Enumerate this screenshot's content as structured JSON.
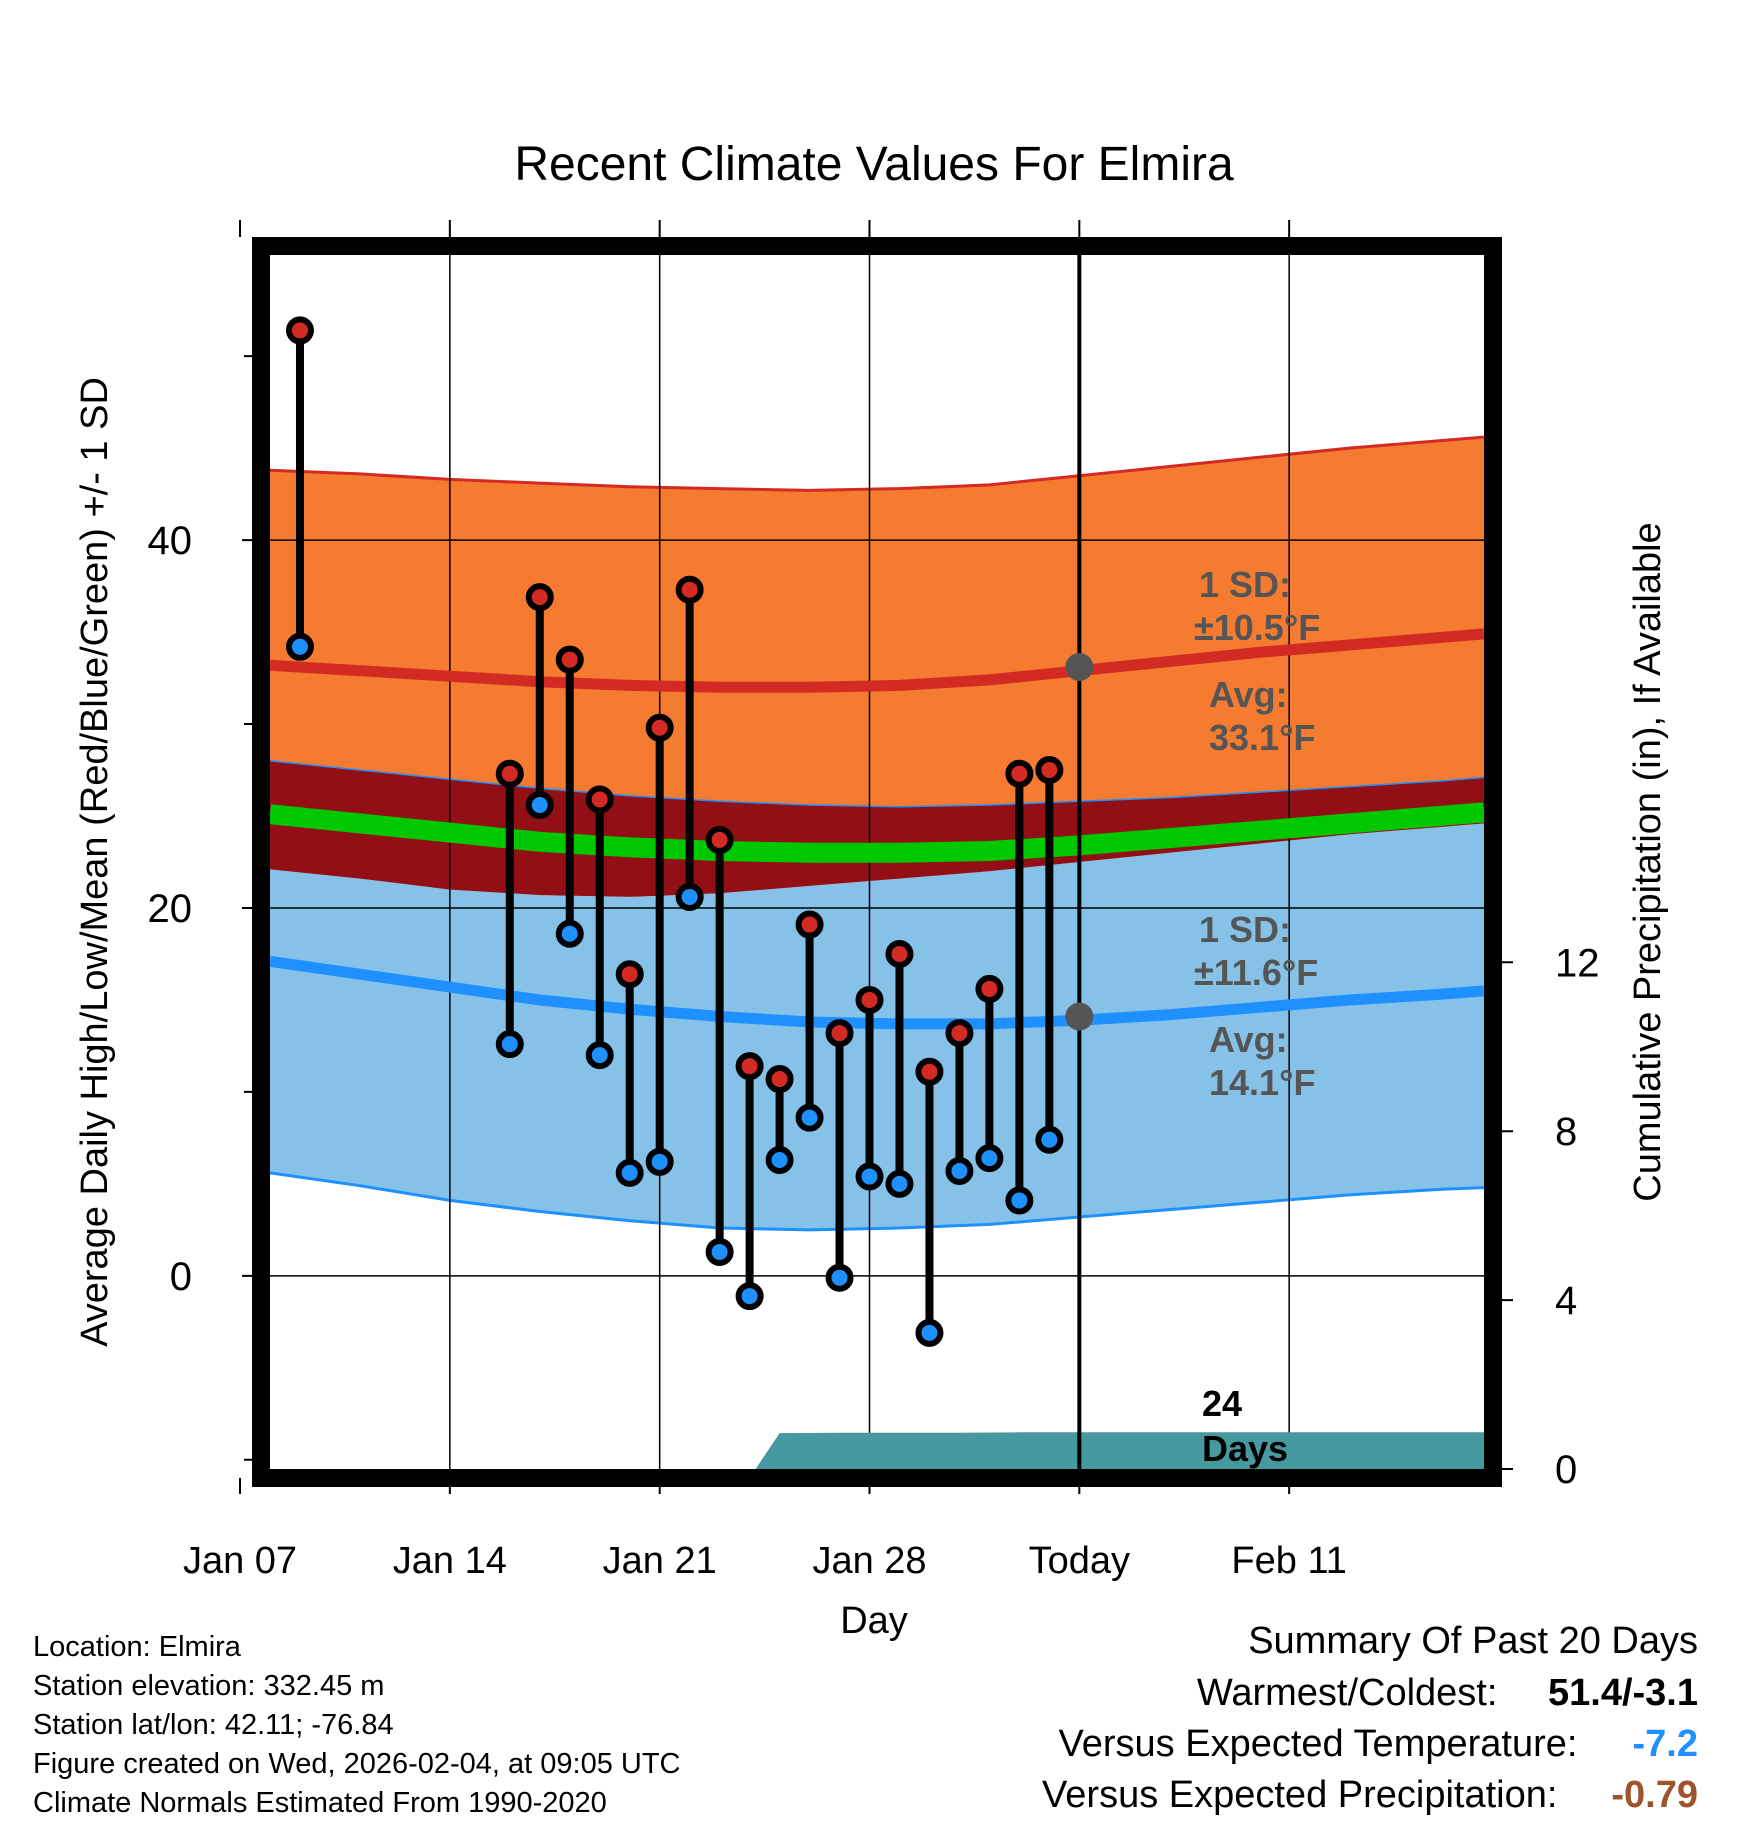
{
  "chart_data": {
    "type": "line",
    "title": "Recent Climate Values For Elmira",
    "xlabel": "Day",
    "ylabel": "Average Daily High/Low/Mean (Red/Blue/Green) +/- 1 SD",
    "y2label": "Cumulative Precipitation (in), If Available",
    "x_range_days": [
      -27,
      13.5
    ],
    "today_offset_days": 0,
    "ylim": [
      -10.5,
      55.5
    ],
    "y2lim": [
      0,
      28.75
    ],
    "x_ticks": [
      {
        "label": "Jan 07",
        "day": -28
      },
      {
        "label": "Jan 14",
        "day": -21
      },
      {
        "label": "Jan 21",
        "day": -14
      },
      {
        "label": "Jan 28",
        "day": -7
      },
      {
        "label": "Today",
        "day": 0
      },
      {
        "label": "Feb 11",
        "day": 7
      }
    ],
    "y_ticks": [
      0,
      20,
      40
    ],
    "y2_ticks": [
      0,
      4,
      8,
      12
    ],
    "normals": {
      "days": [
        -27,
        -24,
        -21,
        -18,
        -15,
        -12,
        -9,
        -6,
        -3,
        0,
        3,
        6,
        9,
        12,
        13.5
      ],
      "high_mean": [
        33.2,
        32.9,
        32.6,
        32.3,
        32.1,
        32.0,
        32.0,
        32.1,
        32.4,
        32.9,
        33.4,
        33.9,
        34.3,
        34.7,
        34.9
      ],
      "low_mean": [
        17.1,
        16.4,
        15.7,
        15.0,
        14.5,
        14.1,
        13.8,
        13.7,
        13.7,
        13.9,
        14.2,
        14.6,
        15.0,
        15.3,
        15.5
      ],
      "mean": [
        25.1,
        24.6,
        24.1,
        23.6,
        23.3,
        23.1,
        23.0,
        23.0,
        23.1,
        23.4,
        23.8,
        24.2,
        24.6,
        25.0,
        25.2
      ],
      "high_upper": [
        43.8,
        43.6,
        43.3,
        43.1,
        42.9,
        42.8,
        42.7,
        42.8,
        43.0,
        43.5,
        44.0,
        44.5,
        45.0,
        45.4,
        45.6
      ],
      "high_lower": [
        28.0,
        27.5,
        27.0,
        26.5,
        26.1,
        25.8,
        25.6,
        25.5,
        25.6,
        25.8,
        26.0,
        26.3,
        26.6,
        26.9,
        27.1
      ],
      "low_upper": [
        22.1,
        21.6,
        21.0,
        20.7,
        20.6,
        20.8,
        21.2,
        21.6,
        22.0,
        22.5,
        23.0,
        23.5,
        24.0,
        24.4,
        24.6
      ],
      "low_lower": [
        5.6,
        4.9,
        4.1,
        3.5,
        3.0,
        2.6,
        2.5,
        2.6,
        2.8,
        3.2,
        3.6,
        4.0,
        4.4,
        4.7,
        4.8
      ]
    },
    "observations": [
      {
        "day": -26,
        "high": 51.4,
        "low": 34.2
      },
      {
        "day": -19,
        "high": 27.3,
        "low": 12.6
      },
      {
        "day": -18,
        "high": 36.9,
        "low": 25.6
      },
      {
        "day": -17,
        "high": 33.5,
        "low": 18.6
      },
      {
        "day": -16,
        "high": 25.9,
        "low": 12.0
      },
      {
        "day": -15,
        "high": 16.4,
        "low": 5.6
      },
      {
        "day": -14,
        "high": 29.8,
        "low": 6.2
      },
      {
        "day": -13,
        "high": 37.3,
        "low": 20.6
      },
      {
        "day": -12,
        "high": 23.7,
        "low": 1.3
      },
      {
        "day": -11,
        "high": 11.4,
        "low": -1.1
      },
      {
        "day": -10,
        "high": 10.7,
        "low": 6.3
      },
      {
        "day": -9,
        "high": 19.1,
        "low": 8.6
      },
      {
        "day": -8,
        "high": 13.2,
        "low": -0.1
      },
      {
        "day": -7,
        "high": 15.0,
        "low": 5.4
      },
      {
        "day": -6,
        "high": 17.5,
        "low": 5.0
      },
      {
        "day": -5,
        "high": 11.1,
        "low": -3.1
      },
      {
        "day": -4,
        "high": 13.2,
        "low": 5.7
      },
      {
        "day": -3,
        "high": 15.6,
        "low": 6.4
      },
      {
        "day": -2,
        "high": 27.3,
        "low": 4.1
      },
      {
        "day": -1,
        "high": 27.5,
        "low": 7.4
      }
    ],
    "precip": {
      "days": [
        -10.8,
        -10,
        -8,
        -6,
        -4,
        -2,
        0,
        2,
        4,
        6,
        8,
        10,
        12,
        13.5
      ],
      "cumulative": [
        0,
        0.85,
        0.86,
        0.86,
        0.86,
        0.87,
        0.87,
        0.87,
        0.87,
        0.87,
        0.87,
        0.87,
        0.87,
        0.87
      ]
    },
    "annotations": {
      "high_sd_label": "1 SD:",
      "high_sd_value": "±10.5°F",
      "high_avg_label": "Avg:",
      "high_avg_value": "33.1°F",
      "high_avg": 33.1,
      "low_sd_label": "1 SD:",
      "low_sd_value": "±11.6°F",
      "low_avg_label": "Avg:",
      "low_avg_value": "14.1°F",
      "low_avg": 14.1,
      "days_count": "24",
      "days_label": "Days"
    },
    "colors": {
      "high_band": "#f47b30",
      "high_line": "#d42a24",
      "overlap_band": "#920f16",
      "low_band": "#86c2e8",
      "low_line": "#1e90ff",
      "mean_line": "#00c800",
      "precip": "#45999f",
      "high_dot": "#d42a24",
      "low_dot": "#1e90ff",
      "annotation": "#555555"
    }
  },
  "metadata": {
    "location": "Location: Elmira",
    "elevation": "Station elevation: 332.45 m",
    "latlon": "Station lat/lon: 42.11; -76.84",
    "created": "Figure created on Wed, 2026-02-04, at 09:05 UTC",
    "normals": "Climate Normals Estimated From 1990-2020"
  },
  "summary": {
    "title": "Summary Of Past 20 Days",
    "warmest_label": "Warmest/Coldest:",
    "warmest_value": "51.4/-3.1",
    "temp_label": "Versus Expected Temperature:",
    "temp_value": "-7.2",
    "temp_color": "#1e90ff",
    "precip_label": "Versus Expected Precipitation:",
    "precip_value": "-0.79",
    "precip_color": "#a0522d"
  }
}
